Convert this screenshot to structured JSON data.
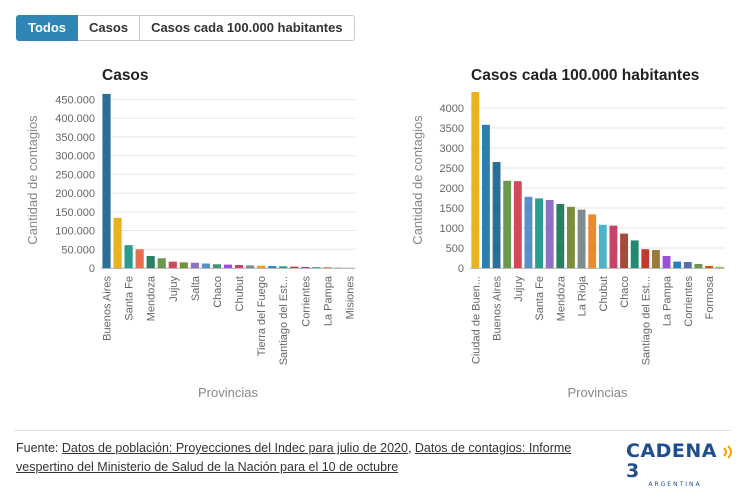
{
  "tabs": [
    {
      "label": "Todos",
      "active": true
    },
    {
      "label": "Casos",
      "active": false
    },
    {
      "label": "Casos cada 100.000 habitantes",
      "active": false
    }
  ],
  "chart_data": [
    {
      "type": "bar",
      "title": "Casos",
      "xlabel": "Provincias",
      "ylabel": "Cantidad de contagios",
      "ylim": [
        0,
        470000
      ],
      "yticks": [
        0,
        50000,
        100000,
        150000,
        200000,
        250000,
        300000,
        350000,
        400000,
        450000
      ],
      "ytick_labels": [
        "0",
        "50.000",
        "100.000",
        "150.000",
        "200.000",
        "250.000",
        "300.000",
        "350.000",
        "400.000",
        "450.000"
      ],
      "grid": true,
      "categories": [
        "Buenos Aires",
        "",
        "Santa Fe",
        "",
        "Mendoza",
        "",
        "Jujuy",
        "",
        "Salta",
        "",
        "Chaco",
        "",
        "Chubut",
        "",
        "Tierra del Fuego",
        "",
        "Santiago del Est...",
        "",
        "Corrientes",
        "",
        "La Pampa",
        "",
        "Misiones"
      ],
      "values": [
        465000,
        134000,
        61000,
        50000,
        32000,
        26000,
        17000,
        15000,
        14000,
        12000,
        10000,
        9000,
        8000,
        7000,
        6000,
        5000,
        4500,
        3500,
        2800,
        2200,
        1700,
        1200,
        300
      ],
      "colors": [
        "#2a6f97",
        "#e8b320",
        "#2a9d8f",
        "#e76f51",
        "#2a7f62",
        "#6a994e",
        "#d1495b",
        "#7b8f3a",
        "#8d6fc4",
        "#5b8fc8",
        "#4d9078",
        "#9d4edd",
        "#c44569",
        "#7f8c8d",
        "#f39c12",
        "#2980b9",
        "#16a085",
        "#c0392b",
        "#8e44ad",
        "#27ae60",
        "#d35400",
        "#95a5a6",
        "#34495e"
      ]
    },
    {
      "type": "bar",
      "title": "Casos cada 100.000 habitantes",
      "xlabel": "Provincias",
      "ylabel": "Cantidad de contagios",
      "ylim": [
        0,
        4400
      ],
      "yticks": [
        0,
        500,
        1000,
        1500,
        2000,
        2500,
        3000,
        3500,
        4000
      ],
      "ytick_labels": [
        "0",
        "500",
        "1000",
        "1500",
        "2000",
        "2500",
        "3000",
        "3500",
        "4000"
      ],
      "grid": true,
      "categories": [
        "Ciudad de Buen...",
        "",
        "Buenos Aires",
        "",
        "Jujuy",
        "",
        "Santa Fe",
        "",
        "Mendoza",
        "",
        "La Rioja",
        "",
        "Chubut",
        "",
        "Chaco",
        "",
        "Santiago del Est...",
        "",
        "La Pampa",
        "",
        "Corrientes",
        "",
        "Formosa",
        ""
      ],
      "values": [
        4400,
        3580,
        2650,
        2180,
        2170,
        1780,
        1740,
        1700,
        1600,
        1530,
        1460,
        1340,
        1080,
        1060,
        860,
        690,
        470,
        450,
        300,
        160,
        150,
        100,
        50,
        30
      ],
      "colors": [
        "#e8b320",
        "#2a7fb0",
        "#2a6f97",
        "#6a994e",
        "#d1495b",
        "#5b8fc8",
        "#2a9d8f",
        "#8d6fc4",
        "#2a7f62",
        "#7b8f3a",
        "#7f8c8d",
        "#e88a2e",
        "#4fb3c8",
        "#c44569",
        "#a84a3a",
        "#1f8a70",
        "#c0392b",
        "#9c7a3c",
        "#9d4edd",
        "#2980b9",
        "#5b6fa8",
        "#6a994e",
        "#d35400",
        "#8bc34a"
      ]
    }
  ],
  "footer": {
    "prefix": "Fuente: ",
    "link1": "Datos de población: Proyecciones del Indec para julio de 2020",
    "separator": ", ",
    "link2": "Datos de contagios: Informe vespertino del Ministerio de Salud de la Nación para el 10 de octubre"
  },
  "logo": {
    "name": "CADENA 3",
    "subtitle": "ARGENTINA",
    "color": "#1f4e8c",
    "accent": "#f0a500"
  }
}
